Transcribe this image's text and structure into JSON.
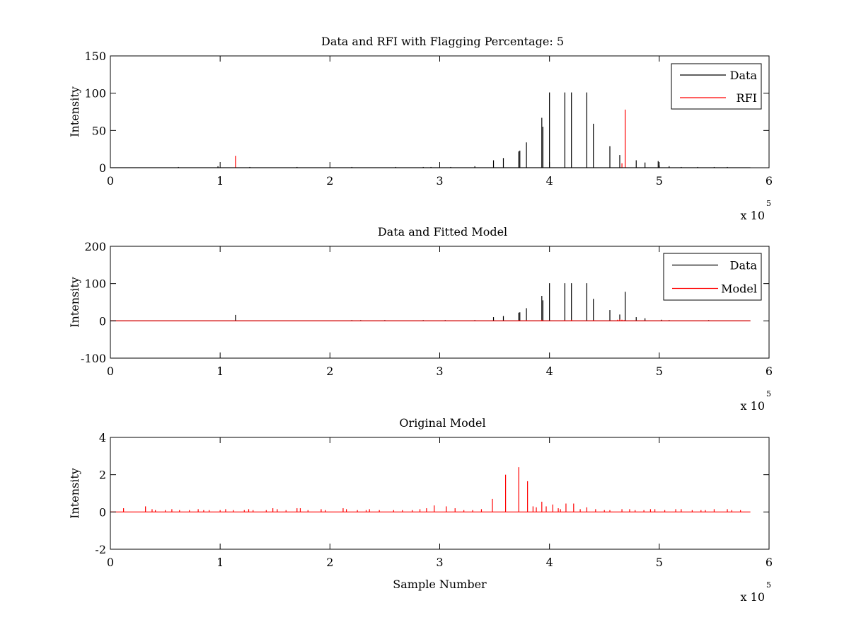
{
  "figure": {
    "background": "#ffffff"
  },
  "colors": {
    "data": "#000000",
    "rfi": "#ff0000",
    "model": "#ff0000",
    "axis": "#000000"
  },
  "chart_data": [
    {
      "type": "line",
      "title": "Data and RFI with Flagging Percentage: 5",
      "xlabel": "",
      "ylabel": "Intensity",
      "xlim": [
        0,
        6
      ],
      "ylim": [
        0,
        150
      ],
      "xticks": [
        0,
        1,
        2,
        3,
        4,
        5,
        6
      ],
      "yticks": [
        0,
        50,
        100,
        150
      ],
      "x_multiplier": {
        "base": "x 10",
        "exponent": "5"
      },
      "legend": {
        "position": "top-right",
        "entries": [
          {
            "name": "Data",
            "color": "#000000"
          },
          {
            "name": "RFI",
            "color": "#ff0000"
          }
        ]
      },
      "series": [
        {
          "name": "Data",
          "color": "#000000",
          "baseline": 0,
          "end_x": 5.83,
          "x": [
            0.62,
            0.98,
            1.27,
            1.7,
            2.2,
            2.6,
            2.85,
            2.92,
            3.1,
            3.32,
            3.49,
            3.58,
            3.72,
            3.73,
            3.79,
            3.93,
            3.94,
            4.0,
            4.14,
            4.2,
            4.34,
            4.4,
            4.55,
            4.64,
            4.79,
            4.87,
            4.99,
            5.0,
            5.09,
            5.2,
            5.35,
            5.5,
            5.62
          ],
          "y": [
            1,
            2,
            1,
            1,
            1,
            1,
            1,
            1,
            1,
            2,
            10,
            13,
            22,
            23,
            34,
            67,
            55,
            101,
            101,
            101,
            101,
            59,
            29,
            17,
            10,
            7,
            9,
            3,
            2,
            1,
            1,
            1,
            1
          ]
        },
        {
          "name": "RFI",
          "color": "#ff0000",
          "baseline": 0,
          "x": [
            1.14,
            4.66,
            4.69
          ],
          "y": [
            16,
            6,
            78
          ]
        }
      ]
    },
    {
      "type": "line",
      "title": "Data and Fitted Model",
      "xlabel": "",
      "ylabel": "Intensity",
      "xlim": [
        0,
        6
      ],
      "ylim": [
        -100,
        200
      ],
      "xticks": [
        0,
        1,
        2,
        3,
        4,
        5,
        6
      ],
      "yticks": [
        -100,
        0,
        100,
        200
      ],
      "x_multiplier": {
        "base": "x 10",
        "exponent": "5"
      },
      "legend": {
        "position": "top-right",
        "entries": [
          {
            "name": "Data",
            "color": "#000000"
          },
          {
            "name": "Model",
            "color": "#ff0000"
          }
        ]
      },
      "series": [
        {
          "name": "Data",
          "color": "#000000",
          "baseline": 0,
          "end_x": 5.83,
          "x": [
            1.14,
            2.2,
            2.28,
            2.5,
            2.85,
            3.05,
            3.32,
            3.49,
            3.58,
            3.72,
            3.73,
            3.79,
            3.93,
            3.94,
            4.0,
            4.14,
            4.2,
            4.34,
            4.4,
            4.55,
            4.64,
            4.69,
            4.79,
            4.87,
            5.02,
            5.09,
            5.45
          ],
          "y": [
            16,
            2,
            2,
            2,
            2,
            2,
            2,
            10,
            13,
            22,
            23,
            34,
            67,
            55,
            101,
            101,
            101,
            101,
            59,
            29,
            17,
            78,
            10,
            7,
            3,
            2,
            2
          ]
        },
        {
          "name": "Model",
          "color": "#ff0000",
          "baseline": 0,
          "end_x": 5.83,
          "x": [
            3.72,
            3.79,
            3.93,
            4.14,
            4.2,
            4.4,
            4.62,
            4.64,
            4.66,
            4.68
          ],
          "y": [
            2,
            2,
            3,
            2,
            3,
            2,
            3,
            4,
            3,
            2
          ]
        }
      ]
    },
    {
      "type": "line",
      "title": "Original Model",
      "xlabel": "Sample Number",
      "ylabel": "Intensity",
      "xlim": [
        0,
        6
      ],
      "ylim": [
        -2,
        4
      ],
      "xticks": [
        0,
        1,
        2,
        3,
        4,
        5,
        6
      ],
      "yticks": [
        -2,
        0,
        2,
        4
      ],
      "x_multiplier": {
        "base": "x 10",
        "exponent": "5"
      },
      "legend": null,
      "series": [
        {
          "name": "Original Model",
          "color": "#ff0000",
          "baseline": 0,
          "end_x": 5.83,
          "x": [
            0.12,
            0.32,
            0.38,
            0.41,
            0.5,
            0.56,
            0.63,
            0.72,
            0.8,
            0.85,
            0.9,
            1.0,
            1.05,
            1.12,
            1.22,
            1.26,
            1.3,
            1.42,
            1.48,
            1.52,
            1.6,
            1.7,
            1.73,
            1.8,
            1.92,
            1.96,
            2.12,
            2.15,
            2.25,
            2.33,
            2.36,
            2.45,
            2.58,
            2.66,
            2.75,
            2.82,
            2.88,
            2.95,
            3.06,
            3.14,
            3.22,
            3.3,
            3.38,
            3.48,
            3.6,
            3.72,
            3.8,
            3.85,
            3.88,
            3.93,
            3.97,
            4.03,
            4.08,
            4.1,
            4.15,
            4.22,
            4.28,
            4.34,
            4.42,
            4.5,
            4.55,
            4.66,
            4.73,
            4.78,
            4.86,
            4.92,
            4.96,
            5.05,
            5.15,
            5.2,
            5.3,
            5.38,
            5.42,
            5.5,
            5.62,
            5.66,
            5.74
          ],
          "y": [
            0.2,
            0.3,
            0.15,
            0.1,
            0.1,
            0.15,
            0.1,
            0.1,
            0.15,
            0.1,
            0.1,
            0.1,
            0.15,
            0.1,
            0.1,
            0.15,
            0.1,
            0.1,
            0.2,
            0.15,
            0.1,
            0.2,
            0.2,
            0.1,
            0.15,
            0.1,
            0.2,
            0.15,
            0.1,
            0.1,
            0.15,
            0.1,
            0.1,
            0.1,
            0.1,
            0.15,
            0.2,
            0.35,
            0.3,
            0.2,
            0.1,
            0.1,
            0.15,
            0.7,
            2.0,
            2.4,
            1.65,
            0.3,
            0.25,
            0.55,
            0.3,
            0.4,
            0.2,
            0.15,
            0.45,
            0.45,
            0.15,
            0.25,
            0.15,
            0.1,
            0.1,
            0.15,
            0.15,
            0.1,
            0.1,
            0.15,
            0.15,
            0.1,
            0.15,
            0.15,
            0.1,
            0.1,
            0.1,
            0.15,
            0.15,
            0.1,
            0.1
          ]
        }
      ]
    }
  ]
}
